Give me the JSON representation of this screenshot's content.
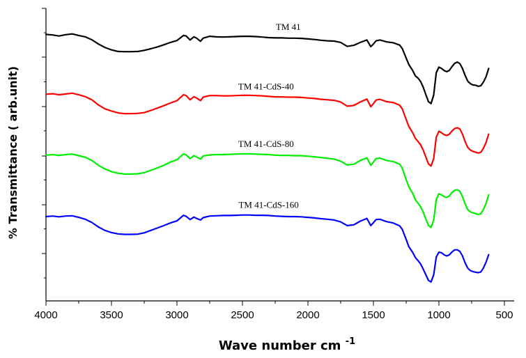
{
  "chart_data": {
    "type": "line",
    "xlabel": "Wave number cm",
    "xlabel_superscript": "-1",
    "ylabel": "% Transmittance  ( arb.unit)",
    "xlim": [
      4000,
      400
    ],
    "x_reversed": true,
    "x_ticks": [
      "4000",
      "3500",
      "3000",
      "2500",
      "2000",
      "1500",
      "1000",
      "500"
    ],
    "y_tick_labels_shown": false,
    "grid": false,
    "legend": "inline labels above each curve",
    "series": [
      {
        "name": "TM 41",
        "color": "#000000",
        "x": [
          4000,
          3950,
          3900,
          3850,
          3800,
          3750,
          3700,
          3650,
          3600,
          3550,
          3500,
          3450,
          3400,
          3350,
          3300,
          3250,
          3200,
          3150,
          3100,
          3050,
          3000,
          2950,
          2930,
          2900,
          2870,
          2850,
          2820,
          2800,
          2750,
          2700,
          2650,
          2600,
          2550,
          2500,
          2450,
          2400,
          2350,
          2300,
          2250,
          2200,
          2150,
          2100,
          2050,
          2000,
          1950,
          1900,
          1850,
          1800,
          1750,
          1700,
          1650,
          1600,
          1550,
          1520,
          1500,
          1480,
          1450,
          1400,
          1350,
          1300,
          1280,
          1250,
          1230,
          1200,
          1180,
          1160,
          1140,
          1120,
          1100,
          1080,
          1060,
          1040,
          1020,
          1000,
          980,
          960,
          940,
          920,
          900,
          880,
          860,
          840,
          820,
          800,
          780,
          760,
          740,
          720,
          700,
          680,
          660,
          640,
          620
        ],
        "y": [
          100.2,
          100,
          99.6,
          100.1,
          100.4,
          99.8,
          99.3,
          98.2,
          96.6,
          95.3,
          94.4,
          93.8,
          93.7,
          93.7,
          93.8,
          94.2,
          94.8,
          95.5,
          96.3,
          97.2,
          97.9,
          99.8,
          99.6,
          98.1,
          99.3,
          98.8,
          97.6,
          98.8,
          99.5,
          99.3,
          99.2,
          99.3,
          99.4,
          99.5,
          99.5,
          99.4,
          99.2,
          99,
          98.9,
          98.9,
          98.8,
          98.8,
          98.7,
          98.5,
          98.3,
          98,
          97.8,
          97.7,
          97.2,
          95.7,
          96.1,
          97.2,
          98.1,
          95.6,
          96.6,
          97.8,
          98.1,
          97.4,
          97.1,
          96.2,
          94.9,
          91.3,
          88.9,
          86.6,
          84.6,
          83.8,
          82.5,
          80.4,
          77.6,
          74.9,
          74.2,
          77.4,
          85.8,
          87.9,
          87.4,
          86.6,
          86.2,
          86.7,
          88.1,
          89.3,
          89.8,
          89.2,
          87.4,
          84.8,
          82.6,
          81.7,
          81.2,
          81.1,
          80.7,
          80.9,
          82.3,
          84.3,
          87.4
        ]
      },
      {
        "name": "TM 41-CdS-40",
        "color": "#ff0000",
        "x": [
          4000,
          3950,
          3900,
          3850,
          3800,
          3750,
          3700,
          3650,
          3600,
          3550,
          3500,
          3450,
          3400,
          3350,
          3300,
          3250,
          3200,
          3150,
          3100,
          3050,
          3000,
          2950,
          2930,
          2900,
          2870,
          2850,
          2820,
          2800,
          2750,
          2700,
          2650,
          2600,
          2550,
          2500,
          2450,
          2400,
          2350,
          2300,
          2250,
          2200,
          2150,
          2100,
          2050,
          2000,
          1950,
          1900,
          1850,
          1800,
          1750,
          1700,
          1650,
          1600,
          1550,
          1520,
          1500,
          1480,
          1450,
          1400,
          1350,
          1300,
          1280,
          1250,
          1230,
          1200,
          1180,
          1160,
          1140,
          1120,
          1100,
          1080,
          1060,
          1040,
          1020,
          1000,
          980,
          960,
          940,
          920,
          900,
          880,
          860,
          840,
          820,
          800,
          780,
          760,
          740,
          720,
          700,
          680,
          660,
          640,
          620
        ],
        "y": [
          77.7,
          77.9,
          77.5,
          77.8,
          78.1,
          77.5,
          76.8,
          75.6,
          73.7,
          72.2,
          71.4,
          70.7,
          70.4,
          70.4,
          70.5,
          70.8,
          71.6,
          72.5,
          73.4,
          74.4,
          75.3,
          77.5,
          77.2,
          75.6,
          76.8,
          76.3,
          75.3,
          76.6,
          77.2,
          77.2,
          77.1,
          77.1,
          77.2,
          77.3,
          77.3,
          77.2,
          77.1,
          76.9,
          76.7,
          76.7,
          76.6,
          76.6,
          76.5,
          76.3,
          76.1,
          75.8,
          75.6,
          75.4,
          74.8,
          73.2,
          73.5,
          74.8,
          75.9,
          73,
          74.2,
          75.5,
          75.8,
          74.9,
          74.6,
          73.6,
          72.2,
          68.2,
          65.6,
          63.2,
          61.1,
          60,
          58.7,
          56.7,
          54.1,
          51.5,
          50.7,
          53.5,
          61.6,
          63.8,
          63.2,
          62.5,
          62.2,
          62.7,
          63.9,
          64.8,
          65.1,
          64.6,
          62.7,
          59.9,
          57.7,
          56.7,
          56.2,
          55.9,
          55.6,
          55.9,
          57.4,
          59.6,
          62.7
        ]
      },
      {
        "name": "TM 41-CdS-80",
        "color": "#00ee00",
        "x": [
          4000,
          3950,
          3900,
          3850,
          3800,
          3750,
          3700,
          3650,
          3600,
          3550,
          3500,
          3450,
          3400,
          3350,
          3300,
          3250,
          3200,
          3150,
          3100,
          3050,
          3000,
          2950,
          2930,
          2900,
          2870,
          2850,
          2820,
          2800,
          2750,
          2700,
          2650,
          2600,
          2550,
          2500,
          2450,
          2400,
          2350,
          2300,
          2250,
          2200,
          2150,
          2100,
          2050,
          2000,
          1950,
          1900,
          1850,
          1800,
          1750,
          1700,
          1650,
          1600,
          1550,
          1520,
          1500,
          1480,
          1450,
          1400,
          1350,
          1300,
          1280,
          1250,
          1230,
          1200,
          1180,
          1160,
          1140,
          1120,
          1100,
          1080,
          1060,
          1040,
          1020,
          1000,
          980,
          960,
          940,
          920,
          900,
          880,
          860,
          840,
          820,
          800,
          780,
          760,
          740,
          720,
          700,
          680,
          660,
          640,
          620
        ],
        "y": [
          54.8,
          55,
          54.7,
          55,
          55.2,
          54.6,
          54,
          52.8,
          51,
          49.6,
          48.6,
          48,
          47.7,
          47.7,
          47.8,
          48.2,
          49.1,
          50,
          51,
          52.2,
          53.1,
          55.3,
          54.9,
          53.5,
          54.6,
          54.1,
          53.3,
          54.5,
          54.9,
          55,
          55,
          55.1,
          55.2,
          55.3,
          55.3,
          55.2,
          55.1,
          55,
          54.8,
          54.7,
          54.7,
          54.6,
          54.6,
          54.4,
          54.2,
          53.9,
          53.6,
          53.3,
          52.5,
          51.1,
          51.4,
          52.8,
          53.8,
          51,
          52.2,
          53.5,
          53.7,
          52.8,
          52.4,
          51.4,
          49.9,
          45.6,
          42.9,
          40.4,
          38,
          36.8,
          35.4,
          33.4,
          30.8,
          28.4,
          27.6,
          30.4,
          38.1,
          40.3,
          39.8,
          39.2,
          38.9,
          39.5,
          40.8,
          41.6,
          41.8,
          41.2,
          39.2,
          36.5,
          34.3,
          33.5,
          33.1,
          32.8,
          32.5,
          32.8,
          34.4,
          36.7,
          39.9
        ]
      },
      {
        "name": "TM 41-CdS-160",
        "color": "#0000ff",
        "x": [
          4000,
          3950,
          3900,
          3850,
          3800,
          3750,
          3700,
          3650,
          3600,
          3550,
          3500,
          3450,
          3400,
          3350,
          3300,
          3250,
          3200,
          3150,
          3100,
          3050,
          3000,
          2950,
          2930,
          2900,
          2870,
          2850,
          2820,
          2800,
          2750,
          2700,
          2650,
          2600,
          2550,
          2500,
          2450,
          2400,
          2350,
          2300,
          2250,
          2200,
          2150,
          2100,
          2050,
          2000,
          1950,
          1900,
          1850,
          1800,
          1750,
          1700,
          1650,
          1600,
          1550,
          1520,
          1500,
          1480,
          1450,
          1400,
          1350,
          1300,
          1280,
          1250,
          1230,
          1200,
          1180,
          1160,
          1140,
          1120,
          1100,
          1080,
          1060,
          1040,
          1020,
          1000,
          980,
          960,
          940,
          920,
          900,
          880,
          860,
          840,
          820,
          800,
          780,
          760,
          740,
          720,
          700,
          680,
          660,
          640,
          620
        ],
        "y": [
          31.7,
          31.9,
          31.6,
          31.9,
          32,
          31.4,
          30.7,
          29.5,
          27.8,
          26.5,
          25.7,
          25.2,
          25,
          25,
          25.1,
          25.6,
          26.5,
          27.4,
          28.3,
          29.3,
          30.1,
          32.2,
          31.8,
          30.6,
          31.5,
          31,
          30.4,
          31.3,
          31.9,
          32,
          32.1,
          32.1,
          32.2,
          32.3,
          32.3,
          32.2,
          32.2,
          32.1,
          31.9,
          31.8,
          31.7,
          31.7,
          31.6,
          31.4,
          31.2,
          30.9,
          30.7,
          30.4,
          29.7,
          28.3,
          28.6,
          30,
          31,
          28.3,
          29.4,
          30.6,
          30.7,
          29.8,
          29.3,
          28.2,
          26.9,
          23.1,
          20.4,
          18.2,
          16.3,
          15.2,
          13.9,
          12,
          9.8,
          7.7,
          7.1,
          9.8,
          16.5,
          18.3,
          18.1,
          17.3,
          16.9,
          17.3,
          18.4,
          19.2,
          19.2,
          18.6,
          16.9,
          14.3,
          12.3,
          11.4,
          11,
          10.8,
          10.6,
          10.9,
          12.4,
          14.6,
          17.4
        ]
      }
    ]
  }
}
